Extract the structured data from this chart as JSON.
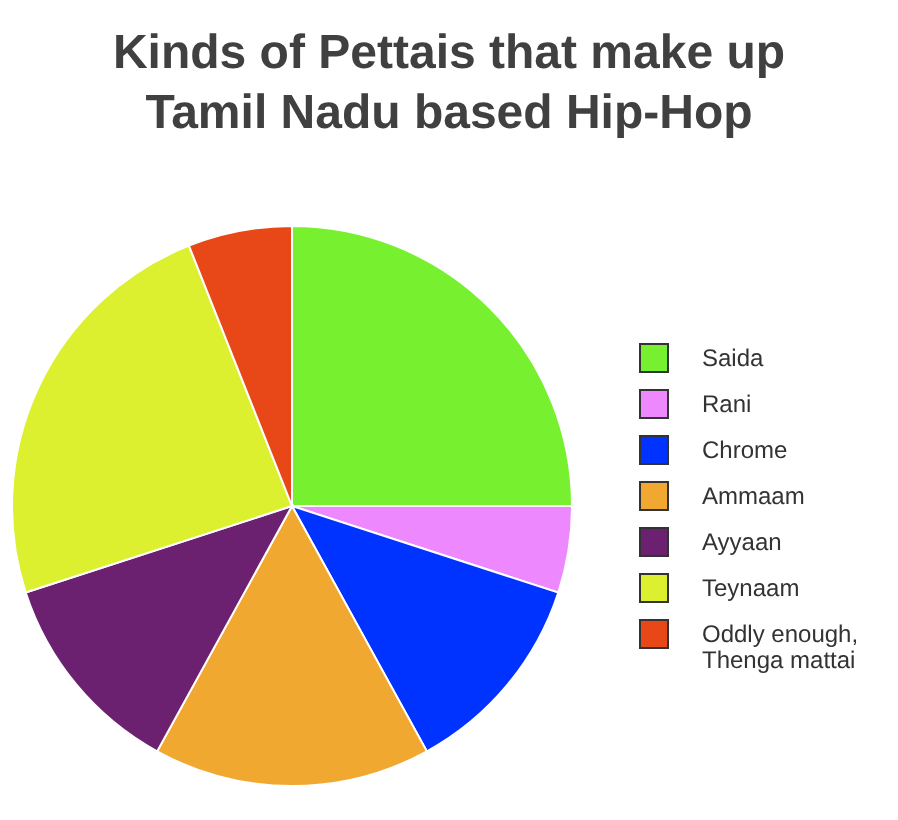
{
  "chart_data": {
    "type": "pie",
    "title": "Kinds of Pettais that make up Tamil Nadu based Hip-Hop",
    "categories": [
      "Saida",
      "Rani",
      "Chrome",
      "Ammaam",
      "Ayyaan",
      "Teynaam",
      "Oddly enough, Thenga mattai"
    ],
    "values": [
      25,
      5,
      12,
      16,
      12,
      24,
      6
    ],
    "colors": [
      "#77f030",
      "#ee88ff",
      "#0033ff",
      "#f0a830",
      "#6b2070",
      "#ddf030",
      "#e84818"
    ],
    "legend": "right"
  }
}
